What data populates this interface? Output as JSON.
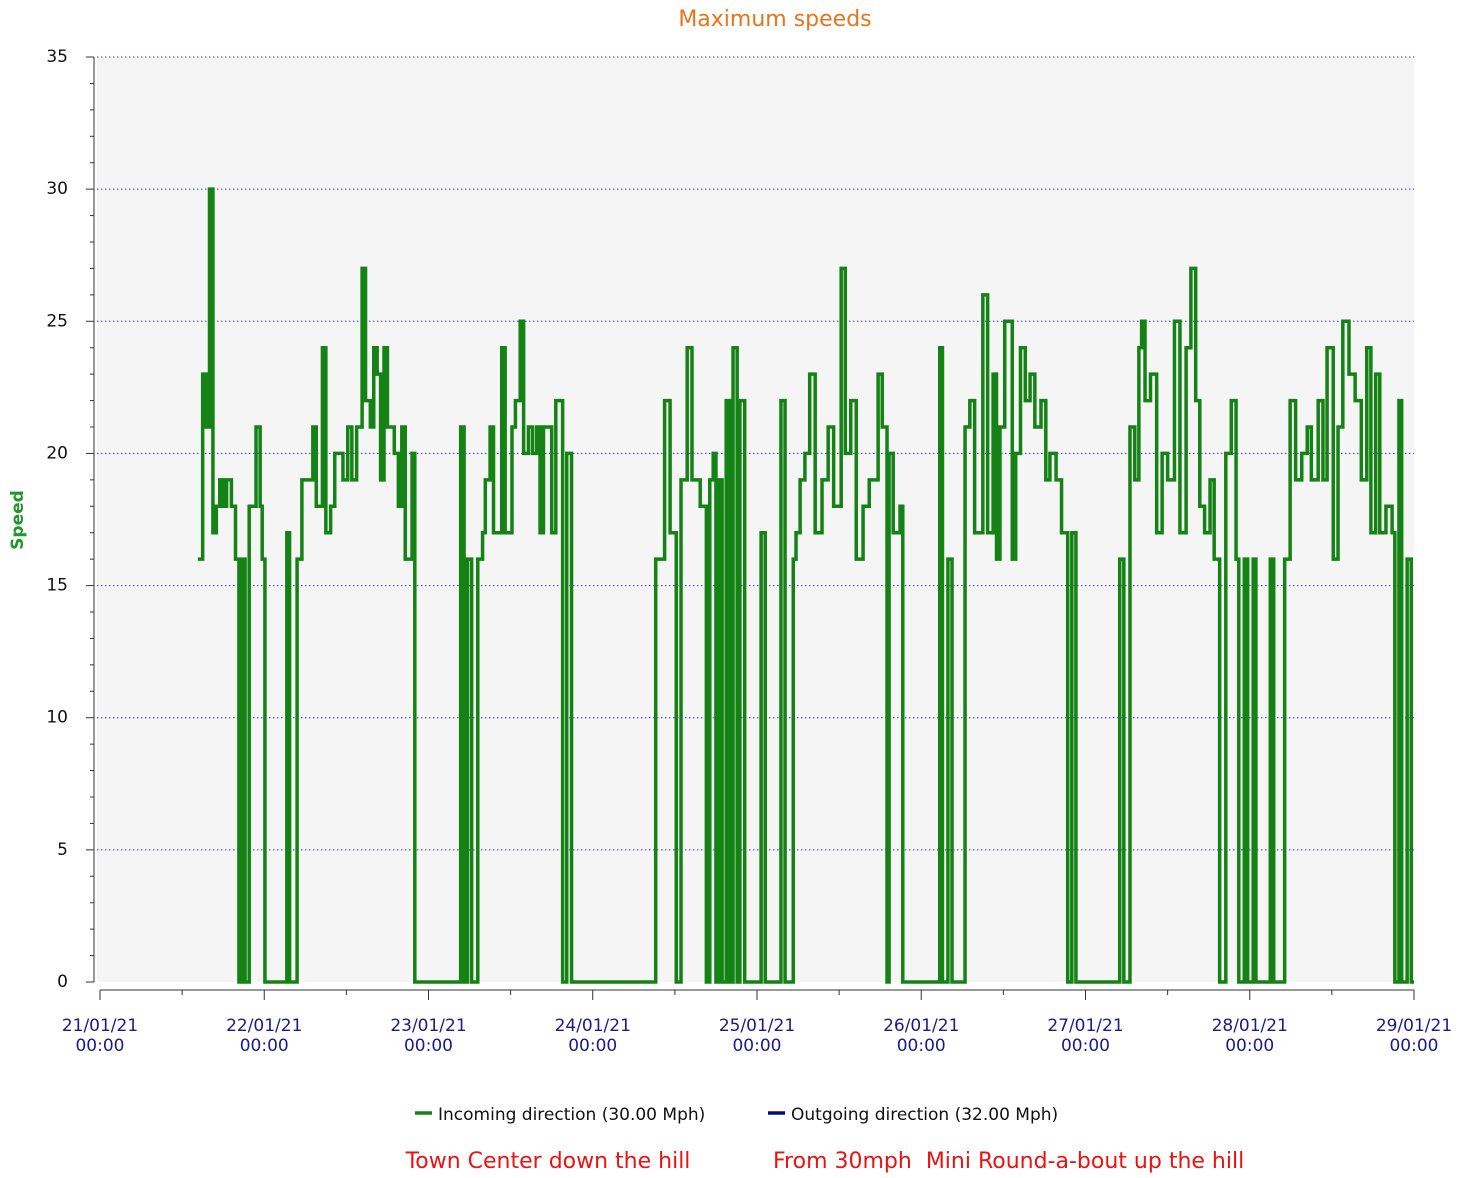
{
  "chart_data": {
    "type": "line",
    "title": "Maximum speeds",
    "ylabel": "Speed",
    "annotations": [
      "Town Center down the hill",
      "From 30mph  Mini Round-a-bout up the hill"
    ],
    "xlim": [
      "21/01/21 00:00",
      "29/01/21 00:00"
    ],
    "xticks": [
      "21/01/21 00:00",
      "22/01/21 00:00",
      "23/01/21 00:00",
      "24/01/21 00:00",
      "25/01/21 00:00",
      "26/01/21 00:00",
      "27/01/21 00:00",
      "28/01/21 00:00",
      "29/01/21 00:00"
    ],
    "ylim": [
      0,
      35
    ],
    "yticks": [
      0,
      5,
      10,
      15,
      20,
      25,
      30,
      35
    ],
    "grid": true,
    "step": true,
    "x": [
      "21/01/21 14:18",
      "21/01/21 15:00",
      "21/01/21 15:30",
      "21/01/21 16:00",
      "21/01/21 16:30",
      "21/01/21 17:00",
      "21/01/21 17:30",
      "21/01/21 18:00",
      "21/01/21 18:30",
      "21/01/21 19:12",
      "21/01/21 19:48",
      "21/01/21 20:18",
      "21/01/21 20:48",
      "21/01/21 21:12",
      "21/01/21 21:48",
      "21/01/21 22:48",
      "21/01/21 23:24",
      "21/01/21 23:42",
      "22/01/21 00:06",
      "22/01/21 03:18",
      "22/01/21 03:42",
      "22/01/21 04:48",
      "22/01/21 05:30",
      "22/01/21 07:06",
      "22/01/21 07:36",
      "22/01/21 08:30",
      "22/01/21 09:00",
      "22/01/21 09:42",
      "22/01/21 10:18",
      "22/01/21 11:30",
      "22/01/21 12:12",
      "22/01/21 12:48",
      "22/01/21 13:30",
      "22/01/21 14:18",
      "22/01/21 14:48",
      "22/01/21 15:30",
      "22/01/21 16:00",
      "22/01/21 16:30",
      "22/01/21 17:00",
      "22/01/21 17:30",
      "22/01/21 18:00",
      "22/01/21 19:00",
      "22/01/21 19:36",
      "22/01/21 20:06",
      "22/01/21 20:36",
      "22/01/21 21:36",
      "22/01/21 22:00",
      "23/01/21 04:42",
      "23/01/21 05:12",
      "23/01/21 05:42",
      "23/01/21 06:18",
      "23/01/21 07:12",
      "23/01/21 07:54",
      "23/01/21 08:18",
      "23/01/21 09:00",
      "23/01/21 09:30",
      "23/01/21 10:42",
      "23/01/21 11:12",
      "23/01/21 12:12",
      "23/01/21 12:42",
      "23/01/21 13:24",
      "23/01/21 13:54",
      "23/01/21 14:36",
      "23/01/21 15:12",
      "23/01/21 15:48",
      "23/01/21 16:18",
      "23/01/21 16:48",
      "23/01/21 18:00",
      "23/01/21 18:36",
      "23/01/21 19:36",
      "23/01/21 20:12",
      "23/01/21 20:54",
      "24/01/21 09:12",
      "24/01/21 10:30",
      "24/01/21 11:18",
      "24/01/21 12:12",
      "24/01/21 12:54",
      "24/01/21 13:48",
      "24/01/21 14:30",
      "24/01/21 15:42",
      "24/01/21 16:36",
      "24/01/21 17:06",
      "24/01/21 17:36",
      "24/01/21 18:00",
      "24/01/21 18:24",
      "24/01/21 18:54",
      "24/01/21 19:30",
      "24/01/21 20:00",
      "24/01/21 20:30",
      "24/01/21 21:06",
      "24/01/21 21:30",
      "24/01/21 22:12",
      "25/01/21 00:36",
      "25/01/21 01:12",
      "25/01/21 03:30",
      "25/01/21 04:06",
      "25/01/21 05:18",
      "25/01/21 05:42",
      "25/01/21 06:18",
      "25/01/21 07:00",
      "25/01/21 07:42",
      "25/01/21 08:30",
      "25/01/21 09:30",
      "25/01/21 10:24",
      "25/01/21 11:12",
      "25/01/21 12:18",
      "25/01/21 12:54",
      "25/01/21 13:42",
      "25/01/21 14:30",
      "25/01/21 15:30",
      "25/01/21 16:24",
      "25/01/21 17:42",
      "25/01/21 18:18",
      "25/01/21 19:00",
      "25/01/21 19:18",
      "25/01/21 19:54",
      "25/01/21 20:54",
      "25/01/21 21:18",
      "26/01/21 02:42",
      "26/01/21 03:06",
      "26/01/21 03:54",
      "26/01/21 04:30",
      "26/01/21 06:24",
      "26/01/21 07:06",
      "26/01/21 07:48",
      "26/01/21 09:00",
      "26/01/21 09:42",
      "26/01/21 10:30",
      "26/01/21 11:00",
      "26/01/21 11:30",
      "26/01/21 12:12",
      "26/01/21 13:18",
      "26/01/21 13:48",
      "26/01/21 14:30",
      "26/01/21 15:12",
      "26/01/21 15:54",
      "26/01/21 16:36",
      "26/01/21 17:30",
      "26/01/21 18:12",
      "26/01/21 18:48",
      "26/01/21 19:42",
      "26/01/21 20:30",
      "26/01/21 21:24",
      "26/01/21 22:00",
      "26/01/21 22:36",
      "27/01/21 05:00",
      "27/01/21 05:36",
      "27/01/21 06:30",
      "27/01/21 07:12",
      "27/01/21 07:48",
      "27/01/21 08:12",
      "27/01/21 08:42",
      "27/01/21 09:30",
      "27/01/21 10:24",
      "27/01/21 11:12",
      "27/01/21 12:00",
      "27/01/21 13:00",
      "27/01/21 13:48",
      "27/01/21 14:42",
      "27/01/21 15:24",
      "27/01/21 16:06",
      "27/01/21 16:42",
      "27/01/21 17:24",
      "27/01/21 18:12",
      "27/01/21 18:48",
      "27/01/21 19:36",
      "27/01/21 20:30",
      "27/01/21 21:18",
      "27/01/21 22:00",
      "27/01/21 22:24",
      "27/01/21 23:12",
      "27/01/21 23:42",
      "28/01/21 00:30",
      "28/01/21 00:54",
      "28/01/21 03:00",
      "28/01/21 03:30",
      "28/01/21 05:06",
      "28/01/21 05:54",
      "28/01/21 06:42",
      "28/01/21 07:36",
      "28/01/21 08:24",
      "28/01/21 09:00",
      "28/01/21 10:00",
      "28/01/21 10:42",
      "28/01/21 11:18",
      "28/01/21 12:12",
      "28/01/21 12:54",
      "28/01/21 13:36",
      "28/01/21 14:30",
      "28/01/21 15:24",
      "28/01/21 16:18",
      "28/01/21 17:06",
      "28/01/21 17:42",
      "28/01/21 18:24",
      "28/01/21 19:00",
      "28/01/21 19:54",
      "28/01/21 20:48",
      "28/01/21 21:12",
      "28/01/21 21:48",
      "28/01/21 22:12",
      "28/01/21 23:00",
      "28/01/21 23:36",
      "29/01/21 00:00"
    ],
    "series": [
      {
        "name": "Incoming direction (30.00 Mph)",
        "color": "#148214",
        "values": [
          16,
          23,
          21,
          30,
          17,
          18,
          19,
          18,
          19,
          18,
          16,
          0,
          16,
          0,
          18,
          21,
          18,
          16,
          0,
          17,
          0,
          16,
          19,
          21,
          18,
          24,
          17,
          18,
          20,
          19,
          21,
          19,
          21,
          27,
          22,
          21,
          24,
          23,
          19,
          24,
          21,
          20,
          18,
          21,
          16,
          20,
          0,
          21,
          0,
          16,
          0,
          16,
          17,
          19,
          21,
          17,
          24,
          17,
          21,
          22,
          25,
          20,
          21,
          20,
          21,
          17,
          21,
          17,
          22,
          0,
          20,
          0,
          16,
          22,
          17,
          0,
          19,
          24,
          19,
          18,
          0,
          19,
          20,
          0,
          19,
          0,
          22,
          0,
          24,
          0,
          22,
          0,
          17,
          0,
          22,
          0,
          16,
          17,
          19,
          20,
          23,
          17,
          19,
          21,
          18,
          27,
          20,
          22,
          16,
          18,
          19,
          23,
          21,
          0,
          20,
          17,
          18,
          0,
          24,
          0,
          16,
          0,
          21,
          22,
          17,
          26,
          17,
          23,
          16,
          21,
          25,
          16,
          20,
          24,
          22,
          23,
          21,
          22,
          19,
          20,
          19,
          17,
          0,
          17,
          0,
          16,
          0,
          21,
          19,
          24,
          25,
          22,
          23,
          17,
          20,
          19,
          25,
          17,
          24,
          27,
          22,
          18,
          17,
          19,
          16,
          0,
          20,
          22,
          16,
          0,
          16,
          0,
          16,
          0,
          16,
          0,
          16,
          22,
          19,
          20,
          21,
          19,
          22,
          19,
          24,
          16,
          21,
          25,
          23,
          22,
          19,
          24,
          17,
          23,
          17,
          18,
          17,
          0,
          22,
          0,
          16,
          0,
          0
        ]
      },
      {
        "name": "Outgoing direction (32.00 Mph)",
        "color": "#0a0a78",
        "values": [
          null,
          null,
          null,
          null,
          null,
          null,
          null,
          null,
          null,
          null,
          null,
          null,
          null,
          null,
          null,
          null,
          null,
          null,
          null,
          null,
          null,
          null,
          null,
          null,
          null,
          null,
          null,
          null,
          null,
          null,
          null,
          null,
          null,
          null,
          null,
          null,
          null,
          null,
          null,
          null,
          null,
          null,
          null,
          null,
          null,
          null,
          null,
          null,
          null,
          null,
          null,
          null,
          null,
          null,
          null,
          null,
          null,
          null,
          null,
          null,
          null,
          null,
          null,
          null,
          null,
          null,
          null,
          null,
          null,
          null,
          null,
          null,
          null,
          null,
          null,
          null,
          null,
          null,
          null,
          null,
          null,
          null,
          null,
          null,
          null,
          null,
          null,
          null,
          null,
          null,
          null,
          null,
          null,
          null,
          null,
          null,
          null,
          null,
          null,
          null,
          null,
          null,
          null,
          null,
          null,
          null,
          null,
          null,
          null,
          null,
          null,
          null,
          null,
          null,
          null,
          null,
          null,
          null,
          null,
          null,
          null,
          null,
          null,
          null,
          null,
          null,
          null,
          null,
          null,
          null,
          null,
          null,
          null,
          null,
          null,
          null,
          null,
          null,
          null,
          null,
          null,
          null,
          null,
          null,
          null,
          null,
          null,
          null,
          null,
          null,
          null,
          null,
          null,
          null,
          null,
          null,
          null,
          null,
          null,
          null,
          null,
          null,
          null,
          null,
          null,
          null,
          null,
          null,
          null,
          null,
          null,
          null,
          null,
          null,
          null,
          null,
          null,
          null,
          null,
          null,
          null,
          null,
          null,
          null,
          null,
          null,
          null,
          null,
          null,
          null,
          null,
          null,
          null,
          null,
          null,
          null,
          null,
          null,
          null,
          null,
          null,
          null,
          null
        ]
      }
    ]
  }
}
